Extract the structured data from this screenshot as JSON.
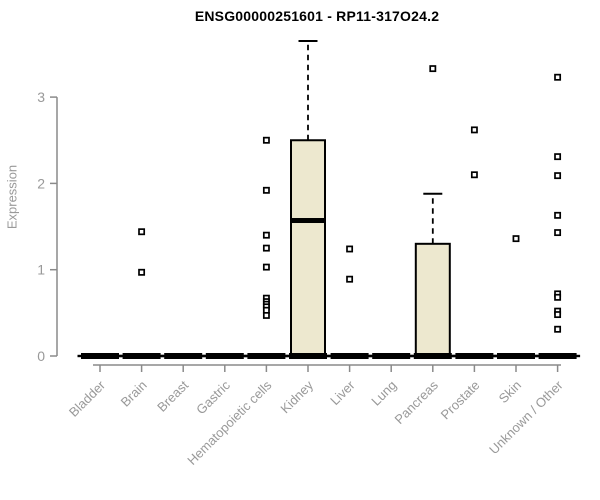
{
  "chart_data": {
    "type": "boxplot",
    "title": "ENSG00000251601 - RP11-317O24.2",
    "ylabel": "Expression",
    "yticks": [
      0,
      1,
      2,
      3
    ],
    "ylim": [
      0,
      3.72
    ],
    "grid": false,
    "legend": "none",
    "categories": [
      "Bladder",
      "Brain",
      "Breast",
      "Gastric",
      "Hematopoietic cells",
      "Kidney",
      "Liver",
      "Lung",
      "Pancreas",
      "Prostate",
      "Skin",
      "Unknown / Other"
    ],
    "series": [
      {
        "name": "Bladder",
        "q1": 0,
        "median": 0,
        "q3": 0,
        "whisker_low": 0,
        "whisker_high": 0,
        "outliers": []
      },
      {
        "name": "Brain",
        "q1": 0,
        "median": 0,
        "q3": 0,
        "whisker_low": 0,
        "whisker_high": 0,
        "outliers": [
          1.44,
          0.97
        ]
      },
      {
        "name": "Breast",
        "q1": 0,
        "median": 0,
        "q3": 0,
        "whisker_low": 0,
        "whisker_high": 0,
        "outliers": []
      },
      {
        "name": "Gastric",
        "q1": 0,
        "median": 0,
        "q3": 0,
        "whisker_low": 0,
        "whisker_high": 0,
        "outliers": []
      },
      {
        "name": "Hematopoietic cells",
        "q1": 0,
        "median": 0,
        "q3": 0,
        "whisker_low": 0,
        "whisker_high": 0,
        "outliers": [
          2.5,
          1.92,
          1.4,
          1.25,
          1.03,
          0.67,
          0.63,
          0.6,
          0.57,
          0.53,
          0.47
        ]
      },
      {
        "name": "Kidney",
        "q1": 0,
        "median": 1.57,
        "q3": 2.5,
        "whisker_low": 0,
        "whisker_high": 3.65,
        "outliers": []
      },
      {
        "name": "Liver",
        "q1": 0,
        "median": 0,
        "q3": 0,
        "whisker_low": 0,
        "whisker_high": 0,
        "outliers": [
          1.24,
          0.89
        ]
      },
      {
        "name": "Lung",
        "q1": 0,
        "median": 0,
        "q3": 0,
        "whisker_low": 0,
        "whisker_high": 0,
        "outliers": []
      },
      {
        "name": "Pancreas",
        "q1": 0,
        "median": 0,
        "q3": 1.3,
        "whisker_low": 0,
        "whisker_high": 1.88,
        "outliers": [
          3.33
        ]
      },
      {
        "name": "Prostate",
        "q1": 0,
        "median": 0,
        "q3": 0,
        "whisker_low": 0,
        "whisker_high": 0,
        "outliers": [
          2.62,
          2.1
        ]
      },
      {
        "name": "Skin",
        "q1": 0,
        "median": 0,
        "q3": 0,
        "whisker_low": 0,
        "whisker_high": 0,
        "outliers": [
          1.36
        ]
      },
      {
        "name": "Unknown / Other",
        "q1": 0,
        "median": 0,
        "q3": 0,
        "whisker_low": 0,
        "whisker_high": 0,
        "outliers": [
          3.23,
          2.31,
          2.09,
          1.63,
          1.43,
          0.72,
          0.68,
          0.52,
          0.48,
          0.31
        ]
      }
    ],
    "colors": {
      "box_fill": "#EDE8CF",
      "box_stroke": "#000000",
      "axis": "#8A8A8A",
      "text": "#999999",
      "title": "#000000",
      "background": "#FFFFFF"
    }
  }
}
